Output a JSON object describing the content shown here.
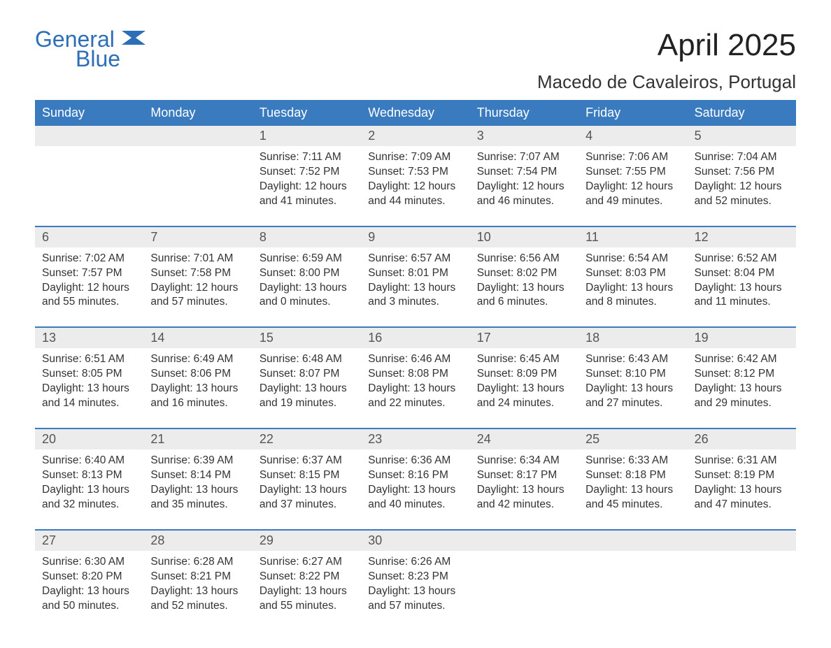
{
  "brand": {
    "word1": "General",
    "word2": "Blue",
    "text_color": "#2d6fb6",
    "flag_color": "#2d6fb6"
  },
  "title": "April 2025",
  "location": "Macedo de Cavaleiros, Portugal",
  "colors": {
    "header_bg": "#3a7bbf",
    "header_text": "#ffffff",
    "daynum_bg": "#ececec",
    "week_divider": "#3a7bbf",
    "body_text": "#333333",
    "page_bg": "#ffffff"
  },
  "fonts": {
    "title_size_pt": 33,
    "location_size_pt": 20,
    "dayheader_size_pt": 14,
    "daynum_size_pt": 14,
    "cell_size_pt": 12
  },
  "labels": {
    "sunrise": "Sunrise: ",
    "sunset": "Sunset: ",
    "daylight": "Daylight: "
  },
  "day_names": [
    "Sunday",
    "Monday",
    "Tuesday",
    "Wednesday",
    "Thursday",
    "Friday",
    "Saturday"
  ],
  "weeks": [
    [
      {
        "num": "",
        "sunrise": "",
        "sunset": "",
        "daylight1": "",
        "daylight2": ""
      },
      {
        "num": "",
        "sunrise": "",
        "sunset": "",
        "daylight1": "",
        "daylight2": ""
      },
      {
        "num": "1",
        "sunrise": "7:11 AM",
        "sunset": "7:52 PM",
        "daylight1": "12 hours",
        "daylight2": "and 41 minutes."
      },
      {
        "num": "2",
        "sunrise": "7:09 AM",
        "sunset": "7:53 PM",
        "daylight1": "12 hours",
        "daylight2": "and 44 minutes."
      },
      {
        "num": "3",
        "sunrise": "7:07 AM",
        "sunset": "7:54 PM",
        "daylight1": "12 hours",
        "daylight2": "and 46 minutes."
      },
      {
        "num": "4",
        "sunrise": "7:06 AM",
        "sunset": "7:55 PM",
        "daylight1": "12 hours",
        "daylight2": "and 49 minutes."
      },
      {
        "num": "5",
        "sunrise": "7:04 AM",
        "sunset": "7:56 PM",
        "daylight1": "12 hours",
        "daylight2": "and 52 minutes."
      }
    ],
    [
      {
        "num": "6",
        "sunrise": "7:02 AM",
        "sunset": "7:57 PM",
        "daylight1": "12 hours",
        "daylight2": "and 55 minutes."
      },
      {
        "num": "7",
        "sunrise": "7:01 AM",
        "sunset": "7:58 PM",
        "daylight1": "12 hours",
        "daylight2": "and 57 minutes."
      },
      {
        "num": "8",
        "sunrise": "6:59 AM",
        "sunset": "8:00 PM",
        "daylight1": "13 hours",
        "daylight2": "and 0 minutes."
      },
      {
        "num": "9",
        "sunrise": "6:57 AM",
        "sunset": "8:01 PM",
        "daylight1": "13 hours",
        "daylight2": "and 3 minutes."
      },
      {
        "num": "10",
        "sunrise": "6:56 AM",
        "sunset": "8:02 PM",
        "daylight1": "13 hours",
        "daylight2": "and 6 minutes."
      },
      {
        "num": "11",
        "sunrise": "6:54 AM",
        "sunset": "8:03 PM",
        "daylight1": "13 hours",
        "daylight2": "and 8 minutes."
      },
      {
        "num": "12",
        "sunrise": "6:52 AM",
        "sunset": "8:04 PM",
        "daylight1": "13 hours",
        "daylight2": "and 11 minutes."
      }
    ],
    [
      {
        "num": "13",
        "sunrise": "6:51 AM",
        "sunset": "8:05 PM",
        "daylight1": "13 hours",
        "daylight2": "and 14 minutes."
      },
      {
        "num": "14",
        "sunrise": "6:49 AM",
        "sunset": "8:06 PM",
        "daylight1": "13 hours",
        "daylight2": "and 16 minutes."
      },
      {
        "num": "15",
        "sunrise": "6:48 AM",
        "sunset": "8:07 PM",
        "daylight1": "13 hours",
        "daylight2": "and 19 minutes."
      },
      {
        "num": "16",
        "sunrise": "6:46 AM",
        "sunset": "8:08 PM",
        "daylight1": "13 hours",
        "daylight2": "and 22 minutes."
      },
      {
        "num": "17",
        "sunrise": "6:45 AM",
        "sunset": "8:09 PM",
        "daylight1": "13 hours",
        "daylight2": "and 24 minutes."
      },
      {
        "num": "18",
        "sunrise": "6:43 AM",
        "sunset": "8:10 PM",
        "daylight1": "13 hours",
        "daylight2": "and 27 minutes."
      },
      {
        "num": "19",
        "sunrise": "6:42 AM",
        "sunset": "8:12 PM",
        "daylight1": "13 hours",
        "daylight2": "and 29 minutes."
      }
    ],
    [
      {
        "num": "20",
        "sunrise": "6:40 AM",
        "sunset": "8:13 PM",
        "daylight1": "13 hours",
        "daylight2": "and 32 minutes."
      },
      {
        "num": "21",
        "sunrise": "6:39 AM",
        "sunset": "8:14 PM",
        "daylight1": "13 hours",
        "daylight2": "and 35 minutes."
      },
      {
        "num": "22",
        "sunrise": "6:37 AM",
        "sunset": "8:15 PM",
        "daylight1": "13 hours",
        "daylight2": "and 37 minutes."
      },
      {
        "num": "23",
        "sunrise": "6:36 AM",
        "sunset": "8:16 PM",
        "daylight1": "13 hours",
        "daylight2": "and 40 minutes."
      },
      {
        "num": "24",
        "sunrise": "6:34 AM",
        "sunset": "8:17 PM",
        "daylight1": "13 hours",
        "daylight2": "and 42 minutes."
      },
      {
        "num": "25",
        "sunrise": "6:33 AM",
        "sunset": "8:18 PM",
        "daylight1": "13 hours",
        "daylight2": "and 45 minutes."
      },
      {
        "num": "26",
        "sunrise": "6:31 AM",
        "sunset": "8:19 PM",
        "daylight1": "13 hours",
        "daylight2": "and 47 minutes."
      }
    ],
    [
      {
        "num": "27",
        "sunrise": "6:30 AM",
        "sunset": "8:20 PM",
        "daylight1": "13 hours",
        "daylight2": "and 50 minutes."
      },
      {
        "num": "28",
        "sunrise": "6:28 AM",
        "sunset": "8:21 PM",
        "daylight1": "13 hours",
        "daylight2": "and 52 minutes."
      },
      {
        "num": "29",
        "sunrise": "6:27 AM",
        "sunset": "8:22 PM",
        "daylight1": "13 hours",
        "daylight2": "and 55 minutes."
      },
      {
        "num": "30",
        "sunrise": "6:26 AM",
        "sunset": "8:23 PM",
        "daylight1": "13 hours",
        "daylight2": "and 57 minutes."
      },
      {
        "num": "",
        "sunrise": "",
        "sunset": "",
        "daylight1": "",
        "daylight2": ""
      },
      {
        "num": "",
        "sunrise": "",
        "sunset": "",
        "daylight1": "",
        "daylight2": ""
      },
      {
        "num": "",
        "sunrise": "",
        "sunset": "",
        "daylight1": "",
        "daylight2": ""
      }
    ]
  ]
}
